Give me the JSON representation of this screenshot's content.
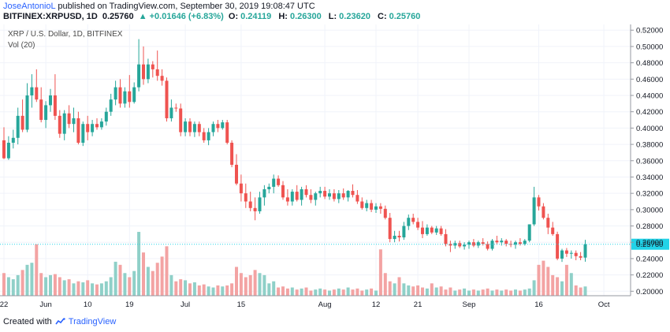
{
  "header": {
    "author": "JoseAntonioL",
    "published": "published on TradingView.com, September 30, 2019 19:08:47 UTC",
    "symbol": "BITFINEX:XRPUSD, 1D",
    "price": "0.25760",
    "change": "▲ +0.01646 (+6.83%)",
    "o_label": "O:",
    "o_value": "0.24119",
    "h_label": "H:",
    "h_value": "0.26300",
    "l_label": "L:",
    "l_value": "0.23620",
    "c_label": "C:",
    "c_value": "0.25760"
  },
  "chart_title": "XRP / U.S. Dollar, 1D, BITFINEX",
  "volume_label": "Vol (20)",
  "last_price_label": "0.25760",
  "footer": {
    "created_with": "Created with",
    "brand": "TradingView"
  },
  "colors": {
    "up": "#26a69a",
    "down": "#ef5350",
    "up_vol": "#8fd0c8",
    "down_vol": "#f3a3a3",
    "last_price": "#22d3e8"
  },
  "chart_data": {
    "type": "candlestick",
    "title": "XRP / U.S. Dollar, 1D, BITFINEX",
    "ylim": [
      0.1945,
      0.527
    ],
    "y_ticks": [
      "0.52000",
      "0.50000",
      "0.48000",
      "0.46000",
      "0.44000",
      "0.42000",
      "0.40000",
      "0.38000",
      "0.36000",
      "0.34000",
      "0.32000",
      "0.30000",
      "0.28000",
      "0.26000",
      "0.24000",
      "0.22000",
      "0.20000"
    ],
    "x_ticks": [
      {
        "index": 0,
        "label": "22"
      },
      {
        "index": 9,
        "label": "Jun"
      },
      {
        "index": 18,
        "label": "10"
      },
      {
        "index": 27,
        "label": "19"
      },
      {
        "index": 39,
        "label": "Jul"
      },
      {
        "index": 51,
        "label": "15"
      },
      {
        "index": 69,
        "label": "Aug"
      },
      {
        "index": 80,
        "label": "12"
      },
      {
        "index": 89,
        "label": "21"
      },
      {
        "index": 100,
        "label": "Sep"
      },
      {
        "index": 115,
        "label": "16"
      },
      {
        "index": 129,
        "label": "Oct"
      }
    ],
    "grid": true,
    "last_price": 0.2576,
    "candles": [
      [
        0.385,
        0.401,
        0.362,
        0.363
      ],
      [
        0.363,
        0.39,
        0.361,
        0.382
      ],
      [
        0.382,
        0.398,
        0.375,
        0.388
      ],
      [
        0.388,
        0.425,
        0.38,
        0.415
      ],
      [
        0.415,
        0.435,
        0.395,
        0.398
      ],
      [
        0.398,
        0.455,
        0.395,
        0.44
      ],
      [
        0.44,
        0.466,
        0.425,
        0.45
      ],
      [
        0.45,
        0.472,
        0.432,
        0.435
      ],
      [
        0.435,
        0.45,
        0.407,
        0.41
      ],
      [
        0.41,
        0.433,
        0.4,
        0.428
      ],
      [
        0.428,
        0.448,
        0.42,
        0.44
      ],
      [
        0.44,
        0.466,
        0.41,
        0.415
      ],
      [
        0.415,
        0.422,
        0.388,
        0.393
      ],
      [
        0.393,
        0.422,
        0.385,
        0.418
      ],
      [
        0.418,
        0.428,
        0.4,
        0.405
      ],
      [
        0.405,
        0.425,
        0.395,
        0.412
      ],
      [
        0.412,
        0.42,
        0.38,
        0.382
      ],
      [
        0.382,
        0.408,
        0.378,
        0.405
      ],
      [
        0.405,
        0.415,
        0.385,
        0.395
      ],
      [
        0.395,
        0.41,
        0.39,
        0.405
      ],
      [
        0.405,
        0.412,
        0.398,
        0.401
      ],
      [
        0.401,
        0.412,
        0.398,
        0.408
      ],
      [
        0.408,
        0.425,
        0.403,
        0.42
      ],
      [
        0.42,
        0.442,
        0.415,
        0.435
      ],
      [
        0.435,
        0.458,
        0.428,
        0.45
      ],
      [
        0.45,
        0.46,
        0.425,
        0.43
      ],
      [
        0.43,
        0.45,
        0.425,
        0.445
      ],
      [
        0.445,
        0.465,
        0.425,
        0.432
      ],
      [
        0.432,
        0.456,
        0.43,
        0.45
      ],
      [
        0.45,
        0.509,
        0.445,
        0.478
      ],
      [
        0.478,
        0.5,
        0.453,
        0.46
      ],
      [
        0.46,
        0.485,
        0.455,
        0.478
      ],
      [
        0.478,
        0.482,
        0.462,
        0.472
      ],
      [
        0.472,
        0.495,
        0.458,
        0.464
      ],
      [
        0.464,
        0.472,
        0.452,
        0.458
      ],
      [
        0.458,
        0.462,
        0.408,
        0.412
      ],
      [
        0.412,
        0.435,
        0.408,
        0.425
      ],
      [
        0.425,
        0.43,
        0.42,
        0.424
      ],
      [
        0.424,
        0.43,
        0.39,
        0.395
      ],
      [
        0.395,
        0.412,
        0.39,
        0.408
      ],
      [
        0.408,
        0.412,
        0.39,
        0.395
      ],
      [
        0.395,
        0.408,
        0.389,
        0.405
      ],
      [
        0.405,
        0.408,
        0.39,
        0.395
      ],
      [
        0.395,
        0.4,
        0.382,
        0.385
      ],
      [
        0.385,
        0.4,
        0.379,
        0.395
      ],
      [
        0.395,
        0.408,
        0.39,
        0.405
      ],
      [
        0.405,
        0.41,
        0.395,
        0.4
      ],
      [
        0.4,
        0.41,
        0.398,
        0.407
      ],
      [
        0.407,
        0.41,
        0.38,
        0.382
      ],
      [
        0.382,
        0.385,
        0.352,
        0.355
      ],
      [
        0.355,
        0.368,
        0.33,
        0.332
      ],
      [
        0.332,
        0.343,
        0.31,
        0.32
      ],
      [
        0.32,
        0.332,
        0.302,
        0.31
      ],
      [
        0.31,
        0.322,
        0.298,
        0.302
      ],
      [
        0.302,
        0.315,
        0.287,
        0.298
      ],
      [
        0.298,
        0.322,
        0.295,
        0.315
      ],
      [
        0.315,
        0.33,
        0.305,
        0.325
      ],
      [
        0.325,
        0.332,
        0.32,
        0.328
      ],
      [
        0.328,
        0.343,
        0.32,
        0.338
      ],
      [
        0.338,
        0.342,
        0.328,
        0.33
      ],
      [
        0.33,
        0.335,
        0.312,
        0.315
      ],
      [
        0.315,
        0.325,
        0.305,
        0.31
      ],
      [
        0.31,
        0.325,
        0.305,
        0.322
      ],
      [
        0.322,
        0.33,
        0.31,
        0.312
      ],
      [
        0.312,
        0.328,
        0.305,
        0.325
      ],
      [
        0.325,
        0.33,
        0.315,
        0.318
      ],
      [
        0.318,
        0.325,
        0.308,
        0.312
      ],
      [
        0.312,
        0.322,
        0.305,
        0.32
      ],
      [
        0.32,
        0.328,
        0.315,
        0.323
      ],
      [
        0.323,
        0.328,
        0.313,
        0.316
      ],
      [
        0.316,
        0.325,
        0.312,
        0.32
      ],
      [
        0.32,
        0.325,
        0.31,
        0.313
      ],
      [
        0.313,
        0.324,
        0.308,
        0.32
      ],
      [
        0.32,
        0.326,
        0.312,
        0.315
      ],
      [
        0.315,
        0.324,
        0.31,
        0.323
      ],
      [
        0.323,
        0.331,
        0.315,
        0.318
      ],
      [
        0.318,
        0.324,
        0.307,
        0.31
      ],
      [
        0.31,
        0.315,
        0.3,
        0.302
      ],
      [
        0.302,
        0.312,
        0.298,
        0.308
      ],
      [
        0.308,
        0.312,
        0.297,
        0.3
      ],
      [
        0.3,
        0.308,
        0.296,
        0.304
      ],
      [
        0.304,
        0.308,
        0.295,
        0.301
      ],
      [
        0.301,
        0.305,
        0.288,
        0.29
      ],
      [
        0.29,
        0.296,
        0.26,
        0.264
      ],
      [
        0.264,
        0.274,
        0.26,
        0.268
      ],
      [
        0.268,
        0.274,
        0.261,
        0.266
      ],
      [
        0.266,
        0.285,
        0.263,
        0.28
      ],
      [
        0.28,
        0.294,
        0.275,
        0.29
      ],
      [
        0.29,
        0.295,
        0.282,
        0.285
      ],
      [
        0.285,
        0.29,
        0.275,
        0.278
      ],
      [
        0.278,
        0.286,
        0.265,
        0.27
      ],
      [
        0.27,
        0.282,
        0.268,
        0.278
      ],
      [
        0.278,
        0.28,
        0.27,
        0.272
      ],
      [
        0.272,
        0.28,
        0.269,
        0.277
      ],
      [
        0.277,
        0.28,
        0.268,
        0.27
      ],
      [
        0.27,
        0.276,
        0.255,
        0.258
      ],
      [
        0.258,
        0.262,
        0.248,
        0.256
      ],
      [
        0.256,
        0.262,
        0.252,
        0.259
      ],
      [
        0.259,
        0.262,
        0.253,
        0.255
      ],
      [
        0.255,
        0.26,
        0.251,
        0.257
      ],
      [
        0.257,
        0.262,
        0.252,
        0.26
      ],
      [
        0.26,
        0.264,
        0.254,
        0.256
      ],
      [
        0.256,
        0.262,
        0.253,
        0.26
      ],
      [
        0.26,
        0.265,
        0.256,
        0.258
      ],
      [
        0.258,
        0.261,
        0.25,
        0.252
      ],
      [
        0.252,
        0.264,
        0.25,
        0.262
      ],
      [
        0.262,
        0.268,
        0.257,
        0.26
      ],
      [
        0.26,
        0.265,
        0.256,
        0.262
      ],
      [
        0.262,
        0.264,
        0.255,
        0.258
      ],
      [
        0.258,
        0.262,
        0.254,
        0.257
      ],
      [
        0.257,
        0.262,
        0.252,
        0.26
      ],
      [
        0.26,
        0.265,
        0.256,
        0.258
      ],
      [
        0.258,
        0.264,
        0.256,
        0.262
      ],
      [
        0.262,
        0.282,
        0.26,
        0.282
      ],
      [
        0.282,
        0.328,
        0.28,
        0.315
      ],
      [
        0.315,
        0.318,
        0.299,
        0.304
      ],
      [
        0.304,
        0.308,
        0.288,
        0.29
      ],
      [
        0.29,
        0.295,
        0.27,
        0.278
      ],
      [
        0.278,
        0.285,
        0.268,
        0.27
      ],
      [
        0.27,
        0.273,
        0.238,
        0.24
      ],
      [
        0.24,
        0.252,
        0.236,
        0.25
      ],
      [
        0.25,
        0.253,
        0.242,
        0.246
      ],
      [
        0.246,
        0.25,
        0.24,
        0.247
      ],
      [
        0.247,
        0.25,
        0.238,
        0.243
      ],
      [
        0.243,
        0.248,
        0.238,
        0.2411
      ],
      [
        0.2412,
        0.263,
        0.2362,
        0.2576
      ]
    ],
    "volume": [
      0.22,
      0.18,
      0.16,
      0.2,
      0.25,
      0.3,
      0.32,
      0.5,
      0.22,
      0.18,
      0.2,
      0.21,
      0.18,
      0.15,
      0.16,
      0.12,
      0.14,
      0.13,
      0.15,
      0.12,
      0.11,
      0.12,
      0.14,
      0.18,
      0.33,
      0.3,
      0.22,
      0.18,
      0.24,
      0.62,
      0.42,
      0.28,
      0.24,
      0.32,
      0.38,
      0.48,
      0.2,
      0.14,
      0.16,
      0.15,
      0.12,
      0.13,
      0.1,
      0.11,
      0.09,
      0.08,
      0.1,
      0.09,
      0.1,
      0.12,
      0.28,
      0.22,
      0.18,
      0.2,
      0.25,
      0.22,
      0.2,
      0.12,
      0.14,
      0.08,
      0.09,
      0.07,
      0.08,
      0.06,
      0.07,
      0.08,
      0.05,
      0.06,
      0.07,
      0.06,
      0.05,
      0.06,
      0.07,
      0.06,
      0.08,
      0.06,
      0.07,
      0.05,
      0.06,
      0.07,
      0.05,
      0.45,
      0.22,
      0.14,
      0.12,
      0.18,
      0.12,
      0.1,
      0.09,
      0.1,
      0.08,
      0.07,
      0.12,
      0.08,
      0.09,
      0.06,
      0.08,
      0.05,
      0.06,
      0.07,
      0.05,
      0.06,
      0.05,
      0.06,
      0.07,
      0.05,
      0.06,
      0.05,
      0.06,
      0.05,
      0.06,
      0.05,
      0.06,
      0.07,
      0.15,
      0.3,
      0.34,
      0.28,
      0.2,
      0.18,
      0.14,
      0.3,
      0.22,
      0.1,
      0.08,
      0.09,
      0.07,
      0.15
    ]
  }
}
